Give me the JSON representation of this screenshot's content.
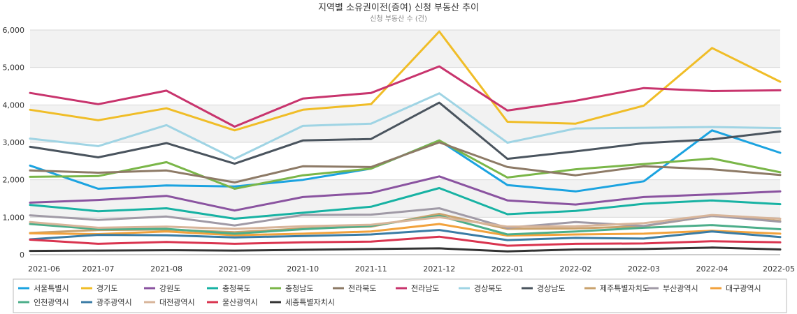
{
  "chart_data": {
    "type": "line",
    "title": "지역별 소유권이전(증여) 신청 부동산 추이",
    "subtitle": "신청 부동산 수 (건)",
    "xlabel": "",
    "ylabel": "",
    "ylim": [
      0,
      6000
    ],
    "yticks": [
      "0",
      "1,000",
      "2,000",
      "3,000",
      "4,000",
      "5,000",
      "6,000"
    ],
    "ytick_values": [
      0,
      1000,
      2000,
      3000,
      4000,
      5000,
      6000
    ],
    "grid": true,
    "legend_position": "bottom",
    "categories": [
      "2021-06",
      "2021-07",
      "2021-08",
      "2021-09",
      "2021-10",
      "2021-11",
      "2021-12",
      "2022-01",
      "2022-02",
      "2022-03",
      "2022-04",
      "2022-05"
    ],
    "series": [
      {
        "name": "서울특별시",
        "color": "#1ba3e0",
        "values": [
          2380,
          1760,
          1850,
          1820,
          2000,
          2300,
          3050,
          1860,
          1690,
          1960,
          3320,
          2720
        ]
      },
      {
        "name": "경기도",
        "color": "#f0bd27",
        "values": [
          3870,
          3590,
          3910,
          3320,
          3870,
          4020,
          5960,
          3550,
          3500,
          3980,
          5520,
          4620
        ]
      },
      {
        "name": "강원도",
        "color": "#8a53a0",
        "values": [
          1390,
          1460,
          1570,
          1180,
          1540,
          1650,
          2090,
          1450,
          1340,
          1540,
          1610,
          1690
        ]
      },
      {
        "name": "충청북도",
        "color": "#17b2a3",
        "values": [
          1330,
          1160,
          1240,
          960,
          1120,
          1280,
          1780,
          1080,
          1170,
          1360,
          1450,
          1350
        ]
      },
      {
        "name": "충청남도",
        "color": "#7ab648",
        "values": [
          2080,
          2100,
          2470,
          1760,
          2120,
          2300,
          3050,
          2060,
          2280,
          2420,
          2570,
          2200
        ]
      },
      {
        "name": "전라북도",
        "color": "#8d7a66",
        "values": [
          2250,
          2190,
          2250,
          1930,
          2360,
          2340,
          3000,
          2340,
          2120,
          2360,
          2280,
          2130
        ]
      },
      {
        "name": "전라남도",
        "color": "#c8346d",
        "values": [
          4320,
          4020,
          4380,
          3420,
          4170,
          4320,
          5030,
          3850,
          4110,
          4450,
          4370,
          4390
        ]
      },
      {
        "name": "경상북도",
        "color": "#9fd4e4",
        "values": [
          3100,
          2900,
          3460,
          2560,
          3440,
          3500,
          4310,
          2990,
          3370,
          3390,
          3410,
          3380
        ]
      },
      {
        "name": "경상남도",
        "color": "#4a545e",
        "values": [
          2880,
          2600,
          2980,
          2430,
          3050,
          3090,
          4060,
          2560,
          2760,
          2980,
          3080,
          3290
        ]
      },
      {
        "name": "제주특별자치도",
        "color": "#c9a26d",
        "values": [
          580,
          660,
          670,
          600,
          700,
          750,
          1090,
          690,
          700,
          760,
          1040,
          900
        ]
      },
      {
        "name": "부산광역시",
        "color": "#a09aa6",
        "values": [
          1050,
          930,
          1020,
          780,
          1060,
          1070,
          1240,
          720,
          870,
          770,
          1040,
          880
        ]
      },
      {
        "name": "대구광역시",
        "color": "#f2a23c",
        "values": [
          570,
          550,
          620,
          520,
          560,
          620,
          820,
          510,
          540,
          560,
          640,
          560
        ]
      },
      {
        "name": "인천광역시",
        "color": "#4cae8a",
        "values": [
          820,
          680,
          690,
          560,
          680,
          770,
          1040,
          540,
          620,
          720,
          790,
          680
        ]
      },
      {
        "name": "광주광역시",
        "color": "#3a7ca5",
        "values": [
          410,
          530,
          520,
          460,
          500,
          540,
          660,
          390,
          450,
          430,
          620,
          470
        ]
      },
      {
        "name": "대전광역시",
        "color": "#d8b59a",
        "values": [
          870,
          720,
          750,
          690,
          760,
          800,
          1000,
          750,
          760,
          840,
          1060,
          960
        ]
      },
      {
        "name": "울산광역시",
        "color": "#d9344f",
        "values": [
          400,
          290,
          340,
          290,
          330,
          350,
          480,
          240,
          290,
          300,
          360,
          330
        ]
      },
      {
        "name": "세종특별자치시",
        "color": "#333333",
        "values": [
          100,
          110,
          120,
          110,
          130,
          150,
          170,
          90,
          140,
          150,
          190,
          140
        ]
      }
    ]
  }
}
